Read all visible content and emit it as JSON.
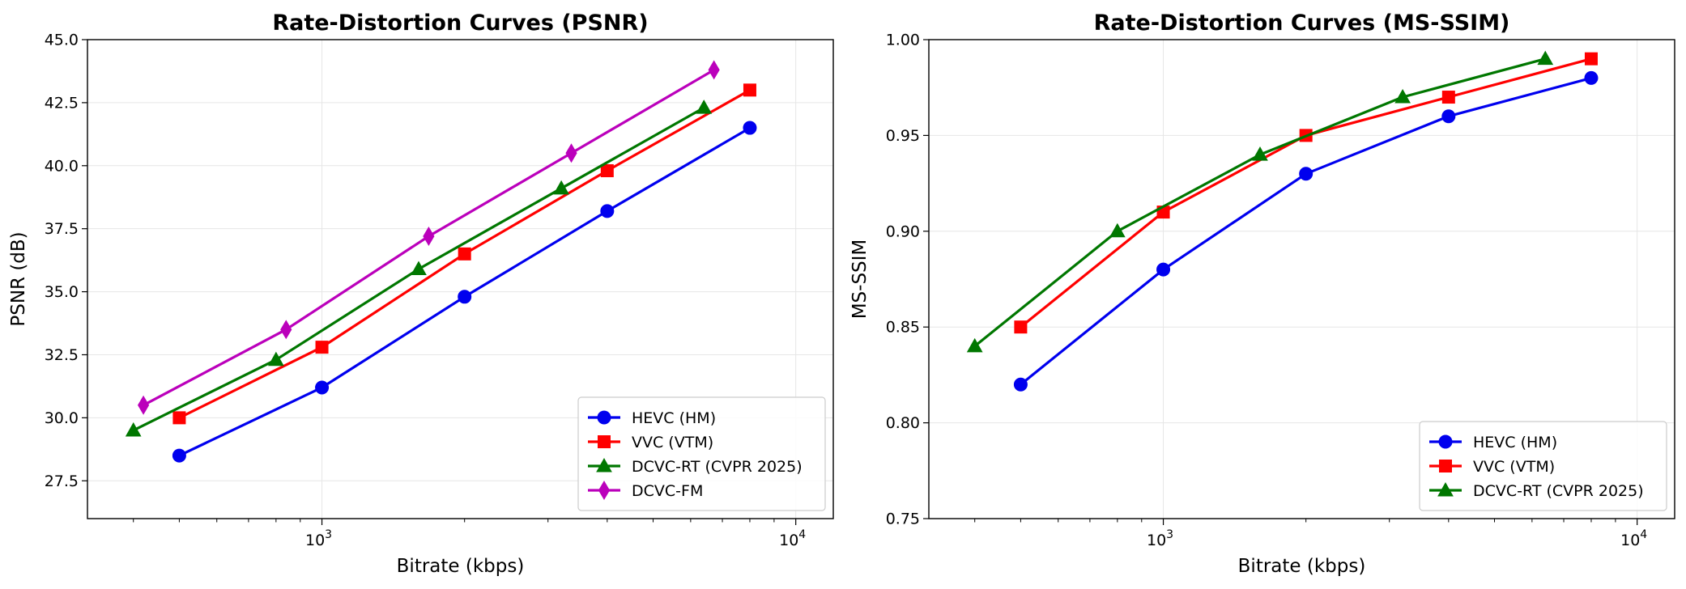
{
  "chart_data": [
    {
      "type": "line",
      "title": "Rate-Distortion Curves (PSNR)",
      "xlabel": "Bitrate (kbps)",
      "ylabel": "PSNR (dB)",
      "xscale": "log",
      "xlim": [
        320,
        12000
      ],
      "ylim": [
        26.0,
        45.0
      ],
      "x_ticks": [
        {
          "value": 1000,
          "base": "10",
          "exp": "3"
        },
        {
          "value": 10000,
          "base": "10",
          "exp": "4"
        }
      ],
      "y_ticks": [
        "27.5",
        "30.0",
        "32.5",
        "35.0",
        "37.5",
        "40.0",
        "42.5",
        "45.0"
      ],
      "grid": true,
      "legend_position": "lower-right",
      "series": [
        {
          "name": "HEVC (HM)",
          "color": "#0000ee",
          "marker": "circle",
          "x": [
            500,
            1000,
            2000,
            4000,
            8000
          ],
          "y": [
            28.5,
            31.2,
            34.8,
            38.2,
            41.5
          ]
        },
        {
          "name": "VVC (VTM)",
          "color": "#ff0000",
          "marker": "square",
          "x": [
            500,
            1000,
            2000,
            4000,
            8000
          ],
          "y": [
            30.0,
            32.8,
            36.5,
            39.8,
            43.0
          ]
        },
        {
          "name": "DCVC-RT (CVPR 2025)",
          "color": "#007700",
          "marker": "triangle",
          "x": [
            400,
            800,
            1600,
            3200,
            6400
          ],
          "y": [
            29.5,
            32.3,
            35.9,
            39.1,
            42.3
          ]
        },
        {
          "name": "DCVC-FM",
          "color": "#bb00bb",
          "marker": "diamond",
          "x": [
            420,
            840,
            1680,
            3360,
            6720
          ],
          "y": [
            30.5,
            33.5,
            37.2,
            40.5,
            43.8
          ]
        }
      ]
    },
    {
      "type": "line",
      "title": "Rate-Distortion Curves (MS-SSIM)",
      "xlabel": "Bitrate (kbps)",
      "ylabel": "MS-SSIM",
      "xscale": "log",
      "xlim": [
        320,
        12000
      ],
      "ylim": [
        0.75,
        1.0
      ],
      "x_ticks": [
        {
          "value": 1000,
          "base": "10",
          "exp": "3"
        },
        {
          "value": 10000,
          "base": "10",
          "exp": "4"
        }
      ],
      "y_ticks": [
        "0.75",
        "0.80",
        "0.85",
        "0.90",
        "0.95",
        "1.00"
      ],
      "grid": true,
      "legend_position": "lower-right",
      "series": [
        {
          "name": "HEVC (HM)",
          "color": "#0000ee",
          "marker": "circle",
          "x": [
            500,
            1000,
            2000,
            4000,
            8000
          ],
          "y": [
            0.82,
            0.88,
            0.93,
            0.96,
            0.98
          ]
        },
        {
          "name": "VVC (VTM)",
          "color": "#ff0000",
          "marker": "square",
          "x": [
            500,
            1000,
            2000,
            4000,
            8000
          ],
          "y": [
            0.85,
            0.91,
            0.95,
            0.97,
            0.99
          ]
        },
        {
          "name": "DCVC-RT (CVPR 2025)",
          "color": "#007700",
          "marker": "triangle",
          "x": [
            400,
            800,
            1600,
            3200,
            6400
          ],
          "y": [
            0.84,
            0.9,
            0.94,
            0.97,
            0.99
          ]
        }
      ]
    }
  ]
}
